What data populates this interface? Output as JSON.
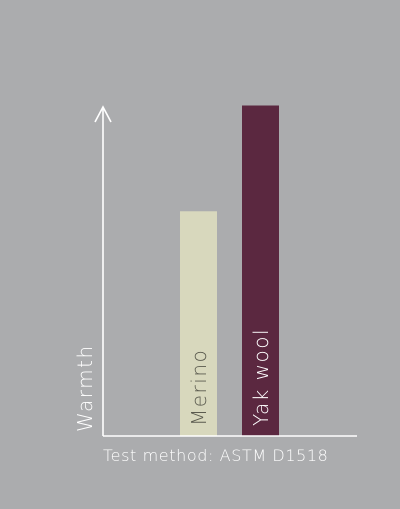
{
  "colors": {
    "background": "#abacae",
    "axis": "#ffffff",
    "merino": "#d8d8bd",
    "yak_wool": "#5b2840",
    "merino_label": "#5a5a4e",
    "yak_wool_label": "#ffffff"
  },
  "chart_data": {
    "type": "bar",
    "categories": [
      "Merino",
      "Yak wool"
    ],
    "values": [
      68,
      100
    ],
    "ylabel": "Warmth",
    "xlabel": "Test method: ASTM D1518",
    "ylim": [
      0,
      110
    ],
    "y_tick_labels": false,
    "grid": false,
    "legend": "none",
    "bar_labels_inside_bars_vertical": true
  }
}
